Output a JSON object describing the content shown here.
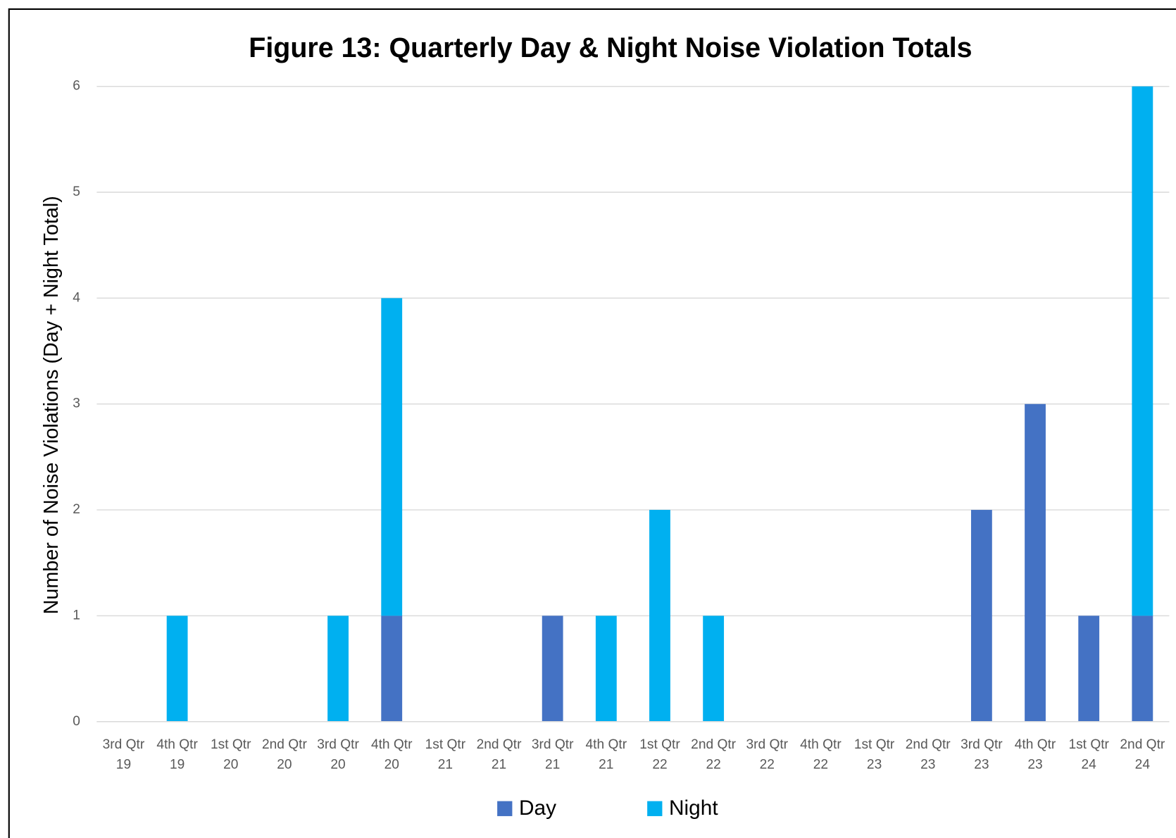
{
  "chart_data": {
    "type": "stacked_bar",
    "title": "Figure 13: Quarterly Day & Night Noise Violation Totals",
    "y_label": "Number of Noise Violations (Day + Night Total)",
    "categories": [
      [
        "3rd Qtr",
        "19"
      ],
      [
        "4th Qtr",
        "19"
      ],
      [
        "1st Qtr",
        "20"
      ],
      [
        "2nd Qtr",
        "20"
      ],
      [
        "3rd Qtr",
        "20"
      ],
      [
        "4th Qtr",
        "20"
      ],
      [
        "1st Qtr",
        "21"
      ],
      [
        "2nd Qtr",
        "21"
      ],
      [
        "3rd Qtr",
        "21"
      ],
      [
        "4th Qtr",
        "21"
      ],
      [
        "1st Qtr",
        "22"
      ],
      [
        "2nd Qtr",
        "22"
      ],
      [
        "3rd Qtr",
        "22"
      ],
      [
        "4th Qtr",
        "22"
      ],
      [
        "1st Qtr",
        "23"
      ],
      [
        "2nd Qtr",
        "23"
      ],
      [
        "3rd Qtr",
        "23"
      ],
      [
        "4th Qtr",
        "23"
      ],
      [
        "1st Qtr",
        "24"
      ],
      [
        "2nd Qtr",
        "24"
      ]
    ],
    "series": [
      {
        "name": "Day",
        "color": "#4472c4",
        "values": [
          0,
          0,
          0,
          0,
          0,
          1,
          0,
          0,
          1,
          0,
          0,
          0,
          0,
          0,
          0,
          0,
          2,
          3,
          1,
          1
        ]
      },
      {
        "name": "Night",
        "color": "#00b0f0",
        "values": [
          0,
          1,
          0,
          0,
          1,
          3,
          0,
          0,
          0,
          1,
          2,
          1,
          0,
          0,
          0,
          0,
          0,
          0,
          0,
          5
        ]
      }
    ],
    "ylim": [
      0,
      6
    ],
    "yticks": [
      0,
      1,
      2,
      3,
      4,
      5,
      6
    ],
    "grid": true,
    "legend": "bottom"
  }
}
